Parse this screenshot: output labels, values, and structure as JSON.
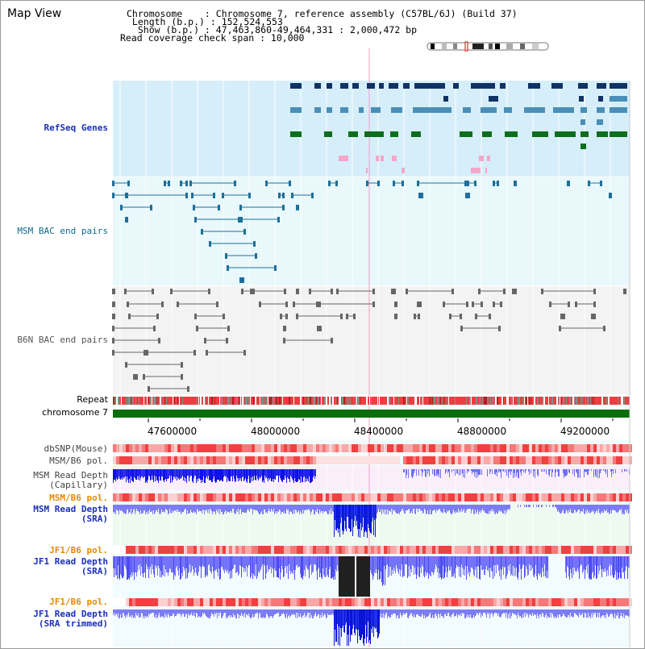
{
  "header": {
    "title": "Map View",
    "info_lines": [
      "Chromosome    : Chromosome 7, reference assembly (C57BL/6J) (Build 37)",
      " Length (b.p.) : 152,524,553",
      "  Show (b.p.) : 47,463,860-49,464,331 : 2,000,472 bp",
      "Read coverage check span : 10,000"
    ]
  },
  "tracks": {
    "refseq": "RefSeq Genes",
    "msm_bac": "MSM BAC end pairs",
    "b6n_bac": "B6N BAC end pairs",
    "repeat": "Repeat",
    "chromosome": "chromosome 7",
    "dbsnp": "dbSNP(Mouse)",
    "msm_b6_pol_1": "MSM/B6 pol.",
    "msm_read_depth_cap": "MSM Read Depth\n(Capillary)",
    "msm_b6_pol_2": "MSM/B6 pol.",
    "msm_read_depth_sra": "MSM Read Depth\n(SRA)",
    "jf1_b6_pol_1": "JF1/B6 pol.",
    "jf1_read_depth_sra": "JF1 Read Depth\n(SRA)",
    "jf1_b6_pol_2": "JF1/B6 pol.",
    "jf1_read_depth_trimmed": "JF1 Read Depth\n(SRA trimmed)"
  },
  "axis": {
    "ticks": [
      "47600000",
      "48000000",
      "48400000",
      "48800000",
      "49200000"
    ]
  },
  "colors": {
    "refseq_bg": "#d6eefa",
    "msm_bg": "#e8f8fb",
    "b6n_bg": "#f3f3f3",
    "chrom_green": "#0a6e0a",
    "gene_navy": "#103366",
    "gene_steel": "#4a8fb8",
    "gene_green": "#0e6e1e",
    "pol_red": "#f06060",
    "depth_blue": "#2233ee",
    "depth_light": "#8080ff"
  }
}
